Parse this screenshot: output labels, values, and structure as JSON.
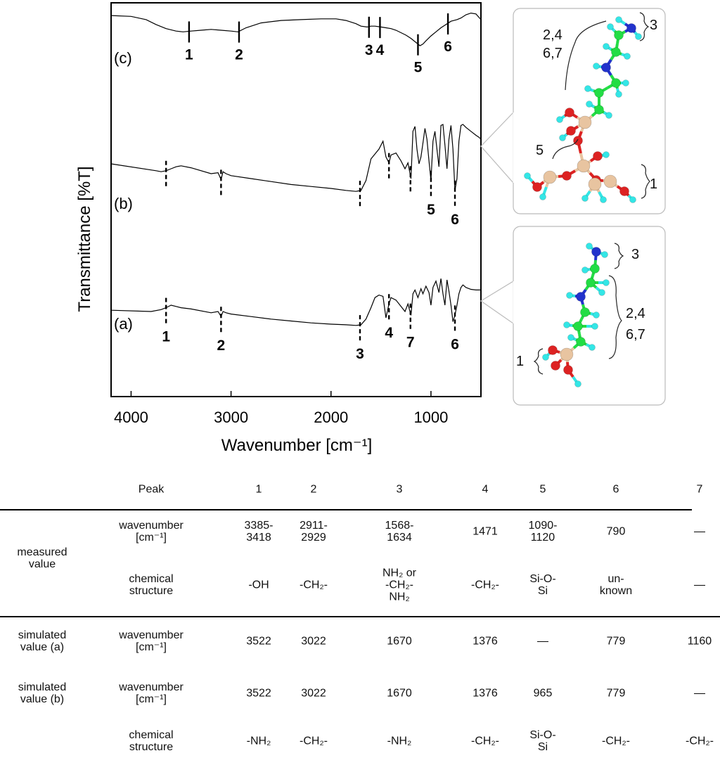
{
  "colors": {
    "trace": "#000000",
    "carbon": "#22dd44",
    "hydrogen": "#33e6e6",
    "nitrogen": "#2233cc",
    "oxygen": "#dd2222",
    "silicon": "#e8c4a0",
    "panel_border": "#bbbbbb"
  },
  "molecule_panels": {
    "top": {
      "labels": [
        "2,4",
        "6,7",
        "3",
        "5",
        "1"
      ]
    },
    "bottom": {
      "labels": [
        "3",
        "2,4",
        "6,7",
        "1"
      ]
    }
  },
  "chart_data": {
    "type": "line",
    "title": "",
    "xlabel": "Wavenumber [cm⁻¹]",
    "ylabel": "Transmittance [%T]",
    "x_range": [
      4200,
      500
    ],
    "x_ticks": [
      4000,
      3000,
      2000,
      1000
    ],
    "x_tick_labels": [
      "4000",
      "3000",
      "2000",
      "1000"
    ],
    "series": [
      {
        "name": "(c)",
        "x": [
          4200,
          4000,
          3850,
          3750,
          3650,
          3550,
          3480,
          3400,
          3300,
          3200,
          3100,
          3000,
          2930,
          2850,
          2700,
          2500,
          2300,
          2100,
          1950,
          1850,
          1750,
          1700,
          1640,
          1600,
          1560,
          1500,
          1450,
          1400,
          1350,
          1300,
          1250,
          1200,
          1150,
          1110,
          1080,
          1050,
          1000,
          950,
          900,
          850,
          800,
          770,
          740,
          700,
          650,
          600,
          550,
          500
        ],
        "values": [
          93,
          92,
          88,
          82,
          77,
          74,
          73,
          74,
          75,
          76,
          75,
          74,
          73,
          78,
          84,
          87,
          88,
          89,
          89,
          87,
          83,
          80,
          79,
          80,
          80,
          79,
          78,
          77,
          75,
          72,
          69,
          65,
          60,
          56,
          58,
          62,
          68,
          73,
          78,
          82,
          86,
          87,
          88,
          90,
          94,
          96,
          95,
          88
        ],
        "marked_peaks": [
          {
            "label": "1",
            "x": 3420
          },
          {
            "label": "2",
            "x": 2920
          },
          {
            "label": "3",
            "x": 1620
          },
          {
            "label": "4",
            "x": 1510
          },
          {
            "label": "5",
            "x": 1130
          },
          {
            "label": "6",
            "x": 830
          }
        ]
      },
      {
        "name": "(b)",
        "x": [
          4200,
          3750,
          3700,
          3650,
          3600,
          3550,
          3500,
          3400,
          3200,
          3130,
          3100,
          3080,
          3050,
          3000,
          2800,
          2600,
          2400,
          2200,
          2000,
          1850,
          1750,
          1700,
          1650,
          1600,
          1560,
          1520,
          1480,
          1450,
          1420,
          1400,
          1350,
          1300,
          1260,
          1230,
          1200,
          1180,
          1160,
          1140,
          1120,
          1100,
          1080,
          1060,
          1040,
          1020,
          1000,
          980,
          960,
          940,
          920,
          900,
          880,
          860,
          840,
          820,
          800,
          780,
          760,
          740,
          720,
          700,
          680,
          650,
          600,
          550,
          520,
          500
        ],
        "values": [
          55,
          48,
          47,
          48,
          50,
          52,
          53,
          51,
          45,
          46,
          39,
          47,
          45,
          43,
          40,
          37,
          34,
          32,
          30,
          28,
          27,
          28,
          38,
          60,
          65,
          70,
          78,
          62,
          56,
          64,
          66,
          58,
          50,
          56,
          40,
          88,
          93,
          70,
          55,
          62,
          76,
          91,
          80,
          58,
          38,
          78,
          88,
          70,
          52,
          94,
          95,
          74,
          50,
          80,
          94,
          70,
          28,
          40,
          78,
          94,
          95,
          92,
          88,
          84,
          82,
          80
        ],
        "marked_peaks": [
          {
            "label": "",
            "x": 3650
          },
          {
            "label": "",
            "x": 3100
          },
          {
            "label": "",
            "x": 1710
          },
          {
            "label": "",
            "x": 1420
          },
          {
            "label": "",
            "x": 1205
          },
          {
            "label": "5",
            "x": 1000
          },
          {
            "label": "6",
            "x": 760
          }
        ]
      },
      {
        "name": "(a)",
        "x": [
          4200,
          3800,
          3700,
          3650,
          3600,
          3550,
          3500,
          3400,
          3200,
          3130,
          3100,
          3080,
          3050,
          3000,
          2800,
          2600,
          2400,
          2200,
          2000,
          1850,
          1750,
          1700,
          1650,
          1600,
          1560,
          1520,
          1480,
          1450,
          1420,
          1400,
          1350,
          1300,
          1260,
          1230,
          1200,
          1180,
          1160,
          1130,
          1100,
          1080,
          1050,
          1020,
          1000,
          980,
          950,
          920,
          900,
          880,
          860,
          840,
          820,
          800,
          780,
          760,
          740,
          720,
          700,
          680,
          650,
          600,
          550,
          500
        ],
        "values": [
          32,
          30,
          33,
          36,
          40,
          38,
          36,
          34,
          28,
          30,
          22,
          30,
          28,
          26,
          22,
          18,
          15,
          12,
          10,
          9,
          8,
          9,
          18,
          36,
          52,
          56,
          54,
          20,
          42,
          52,
          48,
          38,
          30,
          42,
          24,
          58,
          64,
          52,
          66,
          58,
          70,
          60,
          40,
          68,
          78,
          60,
          82,
          58,
          40,
          80,
          62,
          40,
          14,
          24,
          40,
          58,
          68,
          72,
          68,
          65,
          64,
          64
        ],
        "marked_peaks": [
          {
            "label": "1",
            "x": 3650
          },
          {
            "label": "2",
            "x": 3100
          },
          {
            "label": "3",
            "x": 1710
          },
          {
            "label": "4",
            "x": 1420
          },
          {
            "label": "7",
            "x": 1205
          },
          {
            "label": "6",
            "x": 760
          }
        ]
      }
    ],
    "table": {
      "header": [
        "Peak",
        "1",
        "2",
        "3",
        "4",
        "5",
        "6",
        "7"
      ],
      "rows": [
        {
          "group": "measured\nvalue",
          "property": "wavenumber\n[cm⁻¹]",
          "cells": [
            "3385-\n3418",
            "2911-\n2929",
            "1568-\n1634",
            "1471",
            "1090-\n1120",
            "790",
            "—"
          ]
        },
        {
          "group": "",
          "property": "chemical\nstructure",
          "cells": [
            "-OH",
            "-CH₂-",
            "NH₂ or\n-CH₂-\nNH₂",
            "-CH₂-",
            "Si-O-\nSi",
            "un-\nknown",
            "—"
          ]
        },
        {
          "group": "simulated\nvalue (a)",
          "property": "wavenumber\n[cm⁻¹]",
          "cells": [
            "3522",
            "3022",
            "1670",
            "1376",
            "—",
            "779",
            "1160"
          ]
        },
        {
          "group": "simulated\nvalue (b)",
          "property": "wavenumber\n[cm⁻¹]",
          "cells": [
            "3522",
            "3022",
            "1670",
            "1376",
            "965",
            "779",
            "—"
          ]
        },
        {
          "group": "",
          "property": "chemical\nstructure",
          "cells": [
            "-NH₂",
            "-CH₂-",
            "-NH₂",
            "-CH₂-",
            "Si-O-\nSi",
            "-CH₂-",
            "-CH₂-"
          ]
        }
      ]
    }
  }
}
